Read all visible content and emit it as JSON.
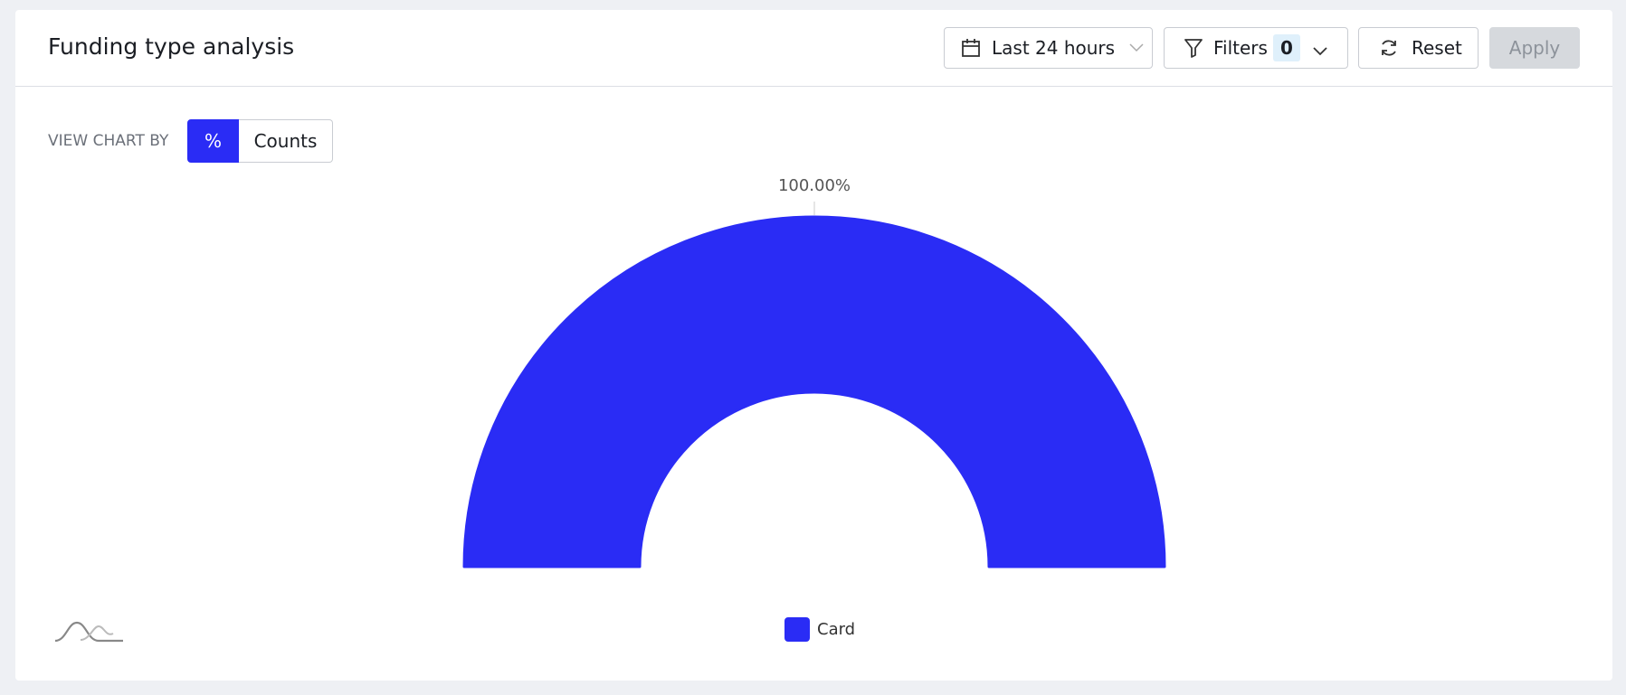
{
  "header": {
    "title": "Funding type analysis",
    "date_range": "Last 24 hours",
    "filters_label": "Filters",
    "filters_count": 0,
    "reset": "Reset",
    "apply": "Apply"
  },
  "view_by": {
    "label": "VIEW CHART BY",
    "options": [
      "%",
      "Counts"
    ]
  },
  "chart_data": {
    "type": "pie",
    "shape": "half-donut",
    "categories": [
      "Card"
    ],
    "values": [
      100
    ],
    "value_labels": [
      "100.00%"
    ],
    "colors": [
      "#2a2cf5"
    ],
    "legend": "bottom"
  }
}
